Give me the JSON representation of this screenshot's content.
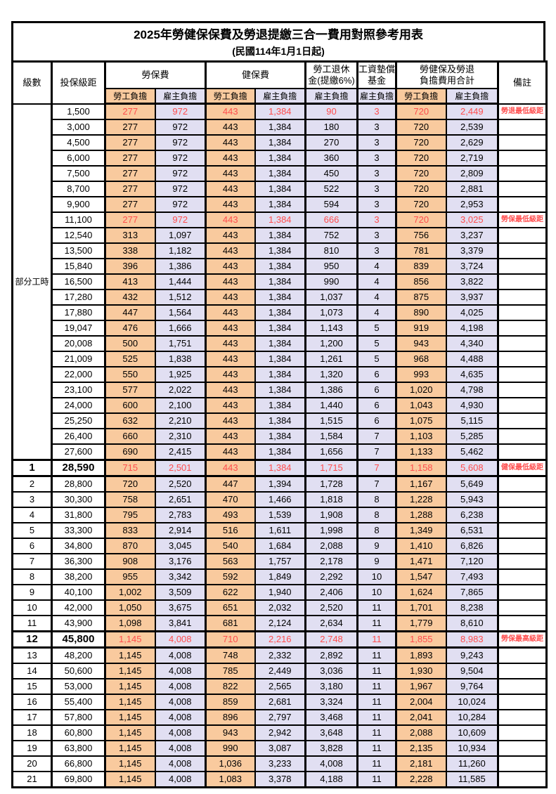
{
  "title": "2025年勞健保保費及勞退提繳三合一費用對照參考用表",
  "subtitle": "(民國114年1月1日起)",
  "colors": {
    "employee_bg": "#F9CA9E",
    "employer_bg": "#E1DFF2",
    "highlight_red": "#FF4D4D",
    "grid": "#000000"
  },
  "header": {
    "level": "級數",
    "bracket": "投保級距",
    "labor_insurance": "勞保費",
    "health_insurance": "健保費",
    "pension": "勞工退休金(提繳6%)",
    "pension_line1": "勞工退休",
    "pension_line2": "金(提繳6%)",
    "wage_fund": "工資墊償基金",
    "wage_fund_line1": "工資墊償",
    "wage_fund_line2": "基金",
    "total": "勞健保及勞退負擔費用合計",
    "total_line1": "勞健保及勞退",
    "total_line2": "負擔費用合計",
    "remark": "備註",
    "employee_share": "勞工負擔",
    "employer_share": "雇主負擔"
  },
  "part_time_label": "部分工時",
  "value_columns": [
    "勞保費-勞工負擔",
    "勞保費-雇主負擔",
    "健保費-勞工負擔",
    "健保費-雇主負擔",
    "勞工退休金-雇主負擔",
    "工資墊償基金-雇主負擔",
    "合計-勞工負擔",
    "合計-雇主負擔"
  ],
  "rows": [
    {
      "level": "",
      "bracket": "1,500",
      "values": [
        "277",
        "972",
        "443",
        "1,384",
        "90",
        "3",
        "720",
        "2,449"
      ],
      "remark": "勞退最低級距",
      "red": true,
      "big": false,
      "emph": false
    },
    {
      "level": "",
      "bracket": "3,000",
      "values": [
        "277",
        "972",
        "443",
        "1,384",
        "180",
        "3",
        "720",
        "2,539"
      ],
      "remark": "",
      "red": false,
      "big": false,
      "emph": false
    },
    {
      "level": "",
      "bracket": "4,500",
      "values": [
        "277",
        "972",
        "443",
        "1,384",
        "270",
        "3",
        "720",
        "2,629"
      ],
      "remark": "",
      "red": false,
      "big": false,
      "emph": false
    },
    {
      "level": "",
      "bracket": "6,000",
      "values": [
        "277",
        "972",
        "443",
        "1,384",
        "360",
        "3",
        "720",
        "2,719"
      ],
      "remark": "",
      "red": false,
      "big": false,
      "emph": false
    },
    {
      "level": "",
      "bracket": "7,500",
      "values": [
        "277",
        "972",
        "443",
        "1,384",
        "450",
        "3",
        "720",
        "2,809"
      ],
      "remark": "",
      "red": false,
      "big": false,
      "emph": false
    },
    {
      "level": "",
      "bracket": "8,700",
      "values": [
        "277",
        "972",
        "443",
        "1,384",
        "522",
        "3",
        "720",
        "2,881"
      ],
      "remark": "",
      "red": false,
      "big": false,
      "emph": false
    },
    {
      "level": "",
      "bracket": "9,900",
      "values": [
        "277",
        "972",
        "443",
        "1,384",
        "594",
        "3",
        "720",
        "2,953"
      ],
      "remark": "",
      "red": false,
      "big": false,
      "emph": false
    },
    {
      "level": "",
      "bracket": "11,100",
      "values": [
        "277",
        "972",
        "443",
        "1,384",
        "666",
        "3",
        "720",
        "3,025"
      ],
      "remark": "勞保最低級距",
      "red": true,
      "big": false,
      "emph": false
    },
    {
      "level": "",
      "bracket": "12,540",
      "values": [
        "313",
        "1,097",
        "443",
        "1,384",
        "752",
        "3",
        "756",
        "3,237"
      ],
      "remark": "",
      "red": false,
      "big": false,
      "emph": false
    },
    {
      "level": "",
      "bracket": "13,500",
      "values": [
        "338",
        "1,182",
        "443",
        "1,384",
        "810",
        "3",
        "781",
        "3,379"
      ],
      "remark": "",
      "red": false,
      "big": false,
      "emph": false
    },
    {
      "level": "",
      "bracket": "15,840",
      "values": [
        "396",
        "1,386",
        "443",
        "1,384",
        "950",
        "4",
        "839",
        "3,724"
      ],
      "remark": "",
      "red": false,
      "big": false,
      "emph": false
    },
    {
      "level": "",
      "bracket": "16,500",
      "values": [
        "413",
        "1,444",
        "443",
        "1,384",
        "990",
        "4",
        "856",
        "3,822"
      ],
      "remark": "",
      "red": false,
      "big": false,
      "emph": false
    },
    {
      "level": "",
      "bracket": "17,280",
      "values": [
        "432",
        "1,512",
        "443",
        "1,384",
        "1,037",
        "4",
        "875",
        "3,937"
      ],
      "remark": "",
      "red": false,
      "big": false,
      "emph": false
    },
    {
      "level": "",
      "bracket": "17,880",
      "values": [
        "447",
        "1,564",
        "443",
        "1,384",
        "1,073",
        "4",
        "890",
        "4,025"
      ],
      "remark": "",
      "red": false,
      "big": false,
      "emph": false
    },
    {
      "level": "",
      "bracket": "19,047",
      "values": [
        "476",
        "1,666",
        "443",
        "1,384",
        "1,143",
        "5",
        "919",
        "4,198"
      ],
      "remark": "",
      "red": false,
      "big": false,
      "emph": false
    },
    {
      "level": "",
      "bracket": "20,008",
      "values": [
        "500",
        "1,751",
        "443",
        "1,384",
        "1,200",
        "5",
        "943",
        "4,340"
      ],
      "remark": "",
      "red": false,
      "big": false,
      "emph": false
    },
    {
      "level": "",
      "bracket": "21,009",
      "values": [
        "525",
        "1,838",
        "443",
        "1,384",
        "1,261",
        "5",
        "968",
        "4,488"
      ],
      "remark": "",
      "red": false,
      "big": false,
      "emph": false
    },
    {
      "level": "",
      "bracket": "22,000",
      "values": [
        "550",
        "1,925",
        "443",
        "1,384",
        "1,320",
        "6",
        "993",
        "4,635"
      ],
      "remark": "",
      "red": false,
      "big": false,
      "emph": false
    },
    {
      "level": "",
      "bracket": "23,100",
      "values": [
        "577",
        "2,022",
        "443",
        "1,384",
        "1,386",
        "6",
        "1,020",
        "4,798"
      ],
      "remark": "",
      "red": false,
      "big": false,
      "emph": false
    },
    {
      "level": "",
      "bracket": "24,000",
      "values": [
        "600",
        "2,100",
        "443",
        "1,384",
        "1,440",
        "6",
        "1,043",
        "4,930"
      ],
      "remark": "",
      "red": false,
      "big": false,
      "emph": false
    },
    {
      "level": "",
      "bracket": "25,250",
      "values": [
        "632",
        "2,210",
        "443",
        "1,384",
        "1,515",
        "6",
        "1,075",
        "5,115"
      ],
      "remark": "",
      "red": false,
      "big": false,
      "emph": false
    },
    {
      "level": "",
      "bracket": "26,400",
      "values": [
        "660",
        "2,310",
        "443",
        "1,384",
        "1,584",
        "7",
        "1,103",
        "5,285"
      ],
      "remark": "",
      "red": false,
      "big": false,
      "emph": false
    },
    {
      "level": "",
      "bracket": "27,600",
      "values": [
        "690",
        "2,415",
        "443",
        "1,384",
        "1,656",
        "7",
        "1,133",
        "5,462"
      ],
      "remark": "",
      "red": false,
      "big": false,
      "emph": false
    },
    {
      "level": "1",
      "bracket": "28,590",
      "values": [
        "715",
        "2,501",
        "443",
        "1,384",
        "1,715",
        "7",
        "1,158",
        "5,608"
      ],
      "remark": "健保最低級距",
      "red": true,
      "big": true,
      "emph": true
    },
    {
      "level": "2",
      "bracket": "28,800",
      "values": [
        "720",
        "2,520",
        "447",
        "1,394",
        "1,728",
        "7",
        "1,167",
        "5,649"
      ],
      "remark": "",
      "red": false,
      "big": false,
      "emph": false
    },
    {
      "level": "3",
      "bracket": "30,300",
      "values": [
        "758",
        "2,651",
        "470",
        "1,466",
        "1,818",
        "8",
        "1,228",
        "5,943"
      ],
      "remark": "",
      "red": false,
      "big": false,
      "emph": false
    },
    {
      "level": "4",
      "bracket": "31,800",
      "values": [
        "795",
        "2,783",
        "493",
        "1,539",
        "1,908",
        "8",
        "1,288",
        "6,238"
      ],
      "remark": "",
      "red": false,
      "big": false,
      "emph": false
    },
    {
      "level": "5",
      "bracket": "33,300",
      "values": [
        "833",
        "2,914",
        "516",
        "1,611",
        "1,998",
        "8",
        "1,349",
        "6,531"
      ],
      "remark": "",
      "red": false,
      "big": false,
      "emph": false
    },
    {
      "level": "6",
      "bracket": "34,800",
      "values": [
        "870",
        "3,045",
        "540",
        "1,684",
        "2,088",
        "9",
        "1,410",
        "6,826"
      ],
      "remark": "",
      "red": false,
      "big": false,
      "emph": false
    },
    {
      "level": "7",
      "bracket": "36,300",
      "values": [
        "908",
        "3,176",
        "563",
        "1,757",
        "2,178",
        "9",
        "1,471",
        "7,120"
      ],
      "remark": "",
      "red": false,
      "big": false,
      "emph": false
    },
    {
      "level": "8",
      "bracket": "38,200",
      "values": [
        "955",
        "3,342",
        "592",
        "1,849",
        "2,292",
        "10",
        "1,547",
        "7,493"
      ],
      "remark": "",
      "red": false,
      "big": false,
      "emph": false
    },
    {
      "level": "9",
      "bracket": "40,100",
      "values": [
        "1,002",
        "3,509",
        "622",
        "1,940",
        "2,406",
        "10",
        "1,624",
        "7,865"
      ],
      "remark": "",
      "red": false,
      "big": false,
      "emph": false
    },
    {
      "level": "10",
      "bracket": "42,000",
      "values": [
        "1,050",
        "3,675",
        "651",
        "2,032",
        "2,520",
        "11",
        "1,701",
        "8,238"
      ],
      "remark": "",
      "red": false,
      "big": false,
      "emph": false
    },
    {
      "level": "11",
      "bracket": "43,900",
      "values": [
        "1,098",
        "3,841",
        "681",
        "2,124",
        "2,634",
        "11",
        "1,779",
        "8,610"
      ],
      "remark": "",
      "red": false,
      "big": false,
      "emph": false
    },
    {
      "level": "12",
      "bracket": "45,800",
      "values": [
        "1,145",
        "4,008",
        "710",
        "2,216",
        "2,748",
        "11",
        "1,855",
        "8,983"
      ],
      "remark": "勞保最高級距",
      "red": true,
      "big": true,
      "emph": true
    },
    {
      "level": "13",
      "bracket": "48,200",
      "values": [
        "1,145",
        "4,008",
        "748",
        "2,332",
        "2,892",
        "11",
        "1,893",
        "9,243"
      ],
      "remark": "",
      "red": false,
      "big": false,
      "emph": false
    },
    {
      "level": "14",
      "bracket": "50,600",
      "values": [
        "1,145",
        "4,008",
        "785",
        "2,449",
        "3,036",
        "11",
        "1,930",
        "9,504"
      ],
      "remark": "",
      "red": false,
      "big": false,
      "emph": false
    },
    {
      "level": "15",
      "bracket": "53,000",
      "values": [
        "1,145",
        "4,008",
        "822",
        "2,565",
        "3,180",
        "11",
        "1,967",
        "9,764"
      ],
      "remark": "",
      "red": false,
      "big": false,
      "emph": false
    },
    {
      "level": "16",
      "bracket": "55,400",
      "values": [
        "1,145",
        "4,008",
        "859",
        "2,681",
        "3,324",
        "11",
        "2,004",
        "10,024"
      ],
      "remark": "",
      "red": false,
      "big": false,
      "emph": false
    },
    {
      "level": "17",
      "bracket": "57,800",
      "values": [
        "1,145",
        "4,008",
        "896",
        "2,797",
        "3,468",
        "11",
        "2,041",
        "10,284"
      ],
      "remark": "",
      "red": false,
      "big": false,
      "emph": false
    },
    {
      "level": "18",
      "bracket": "60,800",
      "values": [
        "1,145",
        "4,008",
        "943",
        "2,942",
        "3,648",
        "11",
        "2,088",
        "10,609"
      ],
      "remark": "",
      "red": false,
      "big": false,
      "emph": false
    },
    {
      "level": "19",
      "bracket": "63,800",
      "values": [
        "1,145",
        "4,008",
        "990",
        "3,087",
        "3,828",
        "11",
        "2,135",
        "10,934"
      ],
      "remark": "",
      "red": false,
      "big": false,
      "emph": false
    },
    {
      "level": "20",
      "bracket": "66,800",
      "values": [
        "1,145",
        "4,008",
        "1,036",
        "3,233",
        "4,008",
        "11",
        "2,181",
        "11,260"
      ],
      "remark": "",
      "red": false,
      "big": false,
      "emph": false
    },
    {
      "level": "21",
      "bracket": "69,800",
      "values": [
        "1,145",
        "4,008",
        "1,083",
        "3,378",
        "4,188",
        "11",
        "2,228",
        "11,585"
      ],
      "remark": "",
      "red": false,
      "big": false,
      "emph": false
    }
  ]
}
